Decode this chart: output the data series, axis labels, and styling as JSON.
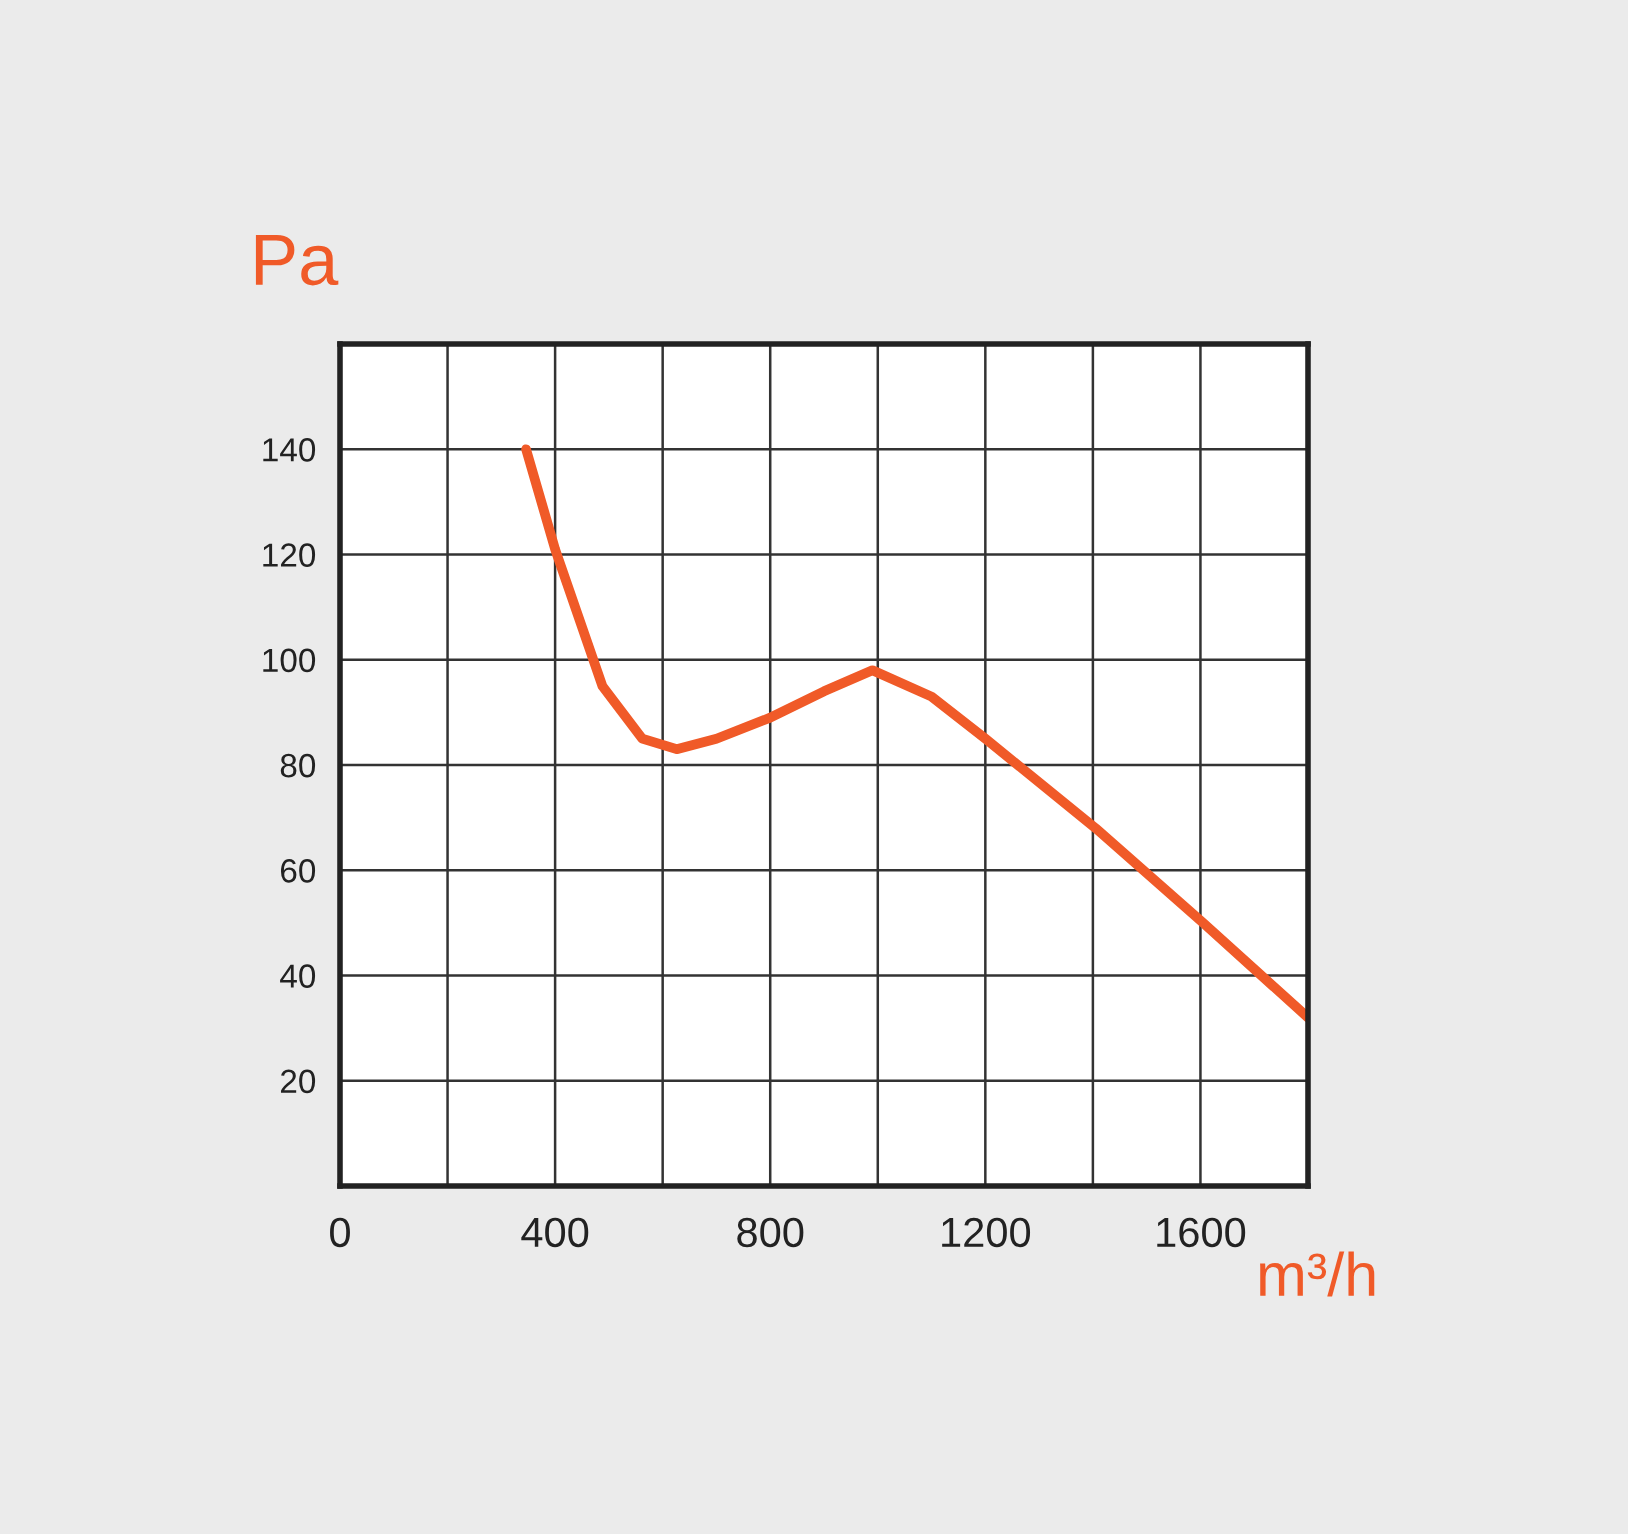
{
  "chart_data": {
    "type": "line",
    "xlabel": "m³/h",
    "ylabel": "Pa",
    "x": [
      346,
      400,
      488,
      562,
      626,
      700,
      800,
      900,
      990,
      1100,
      1200,
      1405,
      1605,
      1800
    ],
    "series": [
      {
        "color": "#f05a28",
        "values": [
          140,
          121,
          95,
          85,
          83,
          85,
          89,
          94,
          98,
          93,
          85,
          68,
          50,
          32
        ]
      }
    ],
    "xlim": [
      0,
      1800
    ],
    "ylim": [
      0,
      160
    ],
    "xticks": [
      0,
      {
        "value": 200,
        "label": null
      },
      400,
      {
        "value": 600,
        "label": null
      },
      800,
      {
        "value": 1000,
        "label": null
      },
      1200,
      {
        "value": 1400,
        "label": null
      },
      1600,
      {
        "value": 1800,
        "label": null
      }
    ],
    "yticks": [
      {
        "value": 0,
        "label": null
      },
      20,
      40,
      60,
      80,
      100,
      120,
      140,
      {
        "value": 160,
        "label": null
      }
    ],
    "grid": true,
    "marker": "none",
    "line_style": "solid",
    "legend": false
  }
}
